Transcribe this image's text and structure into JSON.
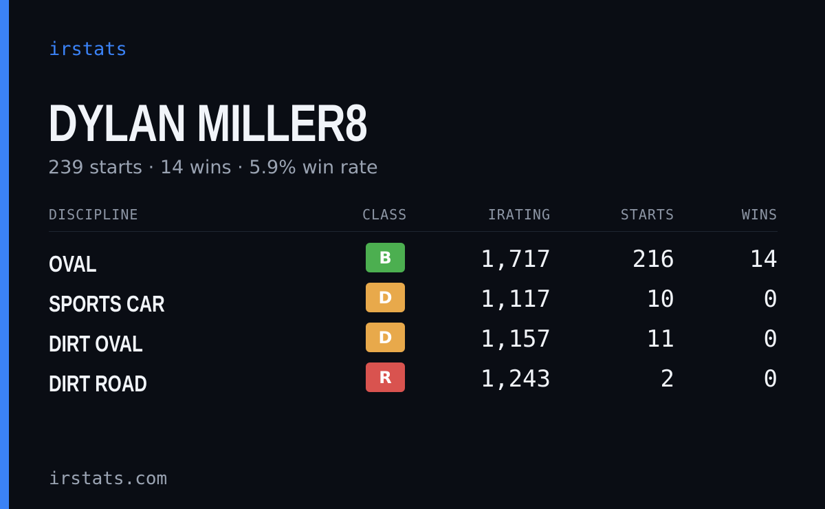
{
  "brand": "irstats",
  "player": {
    "name": "DYLAN MILLER8",
    "summary": "239 starts · 14 wins · 5.9% win rate"
  },
  "table": {
    "headers": {
      "discipline": "DISCIPLINE",
      "class": "CLASS",
      "irating": "IRATING",
      "starts": "STARTS",
      "wins": "WINS"
    },
    "rows": [
      {
        "discipline": "OVAL",
        "class": "B",
        "class_color": "#4caf50",
        "irating": "1,717",
        "starts": "216",
        "wins": "14"
      },
      {
        "discipline": "SPORTS CAR",
        "class": "D",
        "class_color": "#e8a94b",
        "irating": "1,117",
        "starts": "10",
        "wins": "0"
      },
      {
        "discipline": "DIRT OVAL",
        "class": "D",
        "class_color": "#e8a94b",
        "irating": "1,157",
        "starts": "11",
        "wins": "0"
      },
      {
        "discipline": "DIRT ROAD",
        "class": "R",
        "class_color": "#d9534f",
        "irating": "1,243",
        "starts": "2",
        "wins": "0"
      }
    ]
  },
  "footer": {
    "url": "irstats.com"
  },
  "colors": {
    "accent": "#3b82f6",
    "background": "#0a0d14"
  }
}
